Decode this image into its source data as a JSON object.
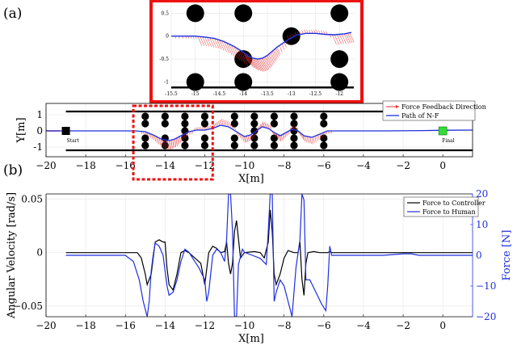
{
  "figure": {
    "panel_a_label": "(a)",
    "panel_b_label": "(b)"
  },
  "chart_data": [
    {
      "id": "inset",
      "type": "line",
      "title": "",
      "xlabel": "",
      "ylabel": "",
      "xlim": [
        -15.5,
        -11.7
      ],
      "ylim": [
        -1.15,
        0.7
      ],
      "x_ticks": [
        -15.5,
        -15,
        -14.5,
        -14,
        -13.5,
        -13,
        -12.5,
        -12
      ],
      "y_ticks": [
        0.5,
        0,
        -0.5,
        -1
      ],
      "grid": true,
      "frame_color": "#ee1111",
      "obstacles_x": [
        -15,
        -14,
        -13,
        -12
      ],
      "obstacles": [
        {
          "x": -15,
          "y": 0.5
        },
        {
          "x": -14,
          "y": 0.5
        },
        {
          "x": -12,
          "y": 0.5
        },
        {
          "x": -13,
          "y": 0
        },
        {
          "x": -14,
          "y": -0.5
        },
        {
          "x": -12,
          "y": -0.5
        },
        {
          "x": -15,
          "y": -1
        },
        {
          "x": -14,
          "y": -1
        },
        {
          "x": -12,
          "y": -1
        }
      ],
      "series": [
        {
          "color": "#1f2fe0",
          "x": [
            -15.5,
            -15.2,
            -15.0,
            -14.8,
            -14.6,
            -14.4,
            -14.2,
            -14.0,
            -13.9,
            -13.8,
            -13.7,
            -13.6,
            -13.5,
            -13.4,
            -13.3,
            -13.1,
            -12.9,
            -12.7,
            -12.5,
            -12.3,
            -12.1,
            -11.9,
            -11.75
          ],
          "y": [
            0.0,
            0.0,
            0.0,
            -0.02,
            -0.05,
            -0.12,
            -0.22,
            -0.35,
            -0.43,
            -0.48,
            -0.5,
            -0.48,
            -0.42,
            -0.33,
            -0.24,
            -0.1,
            0.02,
            0.06,
            0.06,
            0.04,
            0.03,
            0.05,
            0.08
          ]
        }
      ]
    },
    {
      "id": "top-path",
      "type": "line",
      "title": "",
      "xlabel": "X[m]",
      "ylabel": "Y[m]",
      "xlim": [
        -20,
        1.5
      ],
      "ylim": [
        -1.6,
        1.7
      ],
      "x_ticks": [
        -20,
        -18,
        -16,
        -14,
        -12,
        -10,
        -8,
        -6,
        -4,
        -2,
        0
      ],
      "y_ticks": [
        1,
        0,
        -1
      ],
      "grid": true,
      "legend": {
        "position": "top-right",
        "entries": [
          "Force Feedback Direction",
          "Path of N-F"
        ]
      },
      "start_label": "Start",
      "final_label": "Final",
      "start": {
        "x": -19,
        "y": 0
      },
      "final": {
        "x": 0,
        "y": 0
      },
      "start_color": "#000000",
      "final_color": "#33dd33",
      "walls_y": [
        1.2,
        -1.2
      ],
      "obstacle_columns": [
        {
          "x": -15,
          "y": [
            0.9,
            0.45,
            -0.45,
            -0.9
          ]
        },
        {
          "x": -14,
          "y": [
            0.9,
            0.45,
            -0.45,
            -0.9
          ]
        },
        {
          "x": -13,
          "y": [
            0.9,
            0.45,
            0,
            -0.45,
            -0.9
          ]
        },
        {
          "x": -12,
          "y": [
            0.9,
            0.45,
            -0.45,
            -0.9
          ]
        },
        {
          "x": -10.5,
          "y": [
            0.9,
            0.45,
            -0.45,
            -0.9
          ]
        },
        {
          "x": -9.5,
          "y": [
            0.9,
            0.45,
            0,
            -0.45,
            -0.9
          ]
        },
        {
          "x": -8.5,
          "y": [
            0.9,
            0.45,
            -0.45,
            -0.9
          ]
        },
        {
          "x": -7.5,
          "y": [
            0.9,
            0.45,
            0,
            -0.45,
            -0.9
          ]
        },
        {
          "x": -6,
          "y": [
            0.9,
            0.45,
            -0.45,
            -0.9
          ]
        }
      ],
      "zoom_box": {
        "x": [
          -15.6,
          -11.6
        ],
        "y": [
          -1.6,
          1.6
        ],
        "color": "#ee1111"
      },
      "series": [
        {
          "name": "Path of N-F",
          "color": "#1f2fe0",
          "x": [
            -20,
            -19,
            -17,
            -16,
            -15.5,
            -15,
            -14.6,
            -14.2,
            -13.8,
            -13.5,
            -13.2,
            -12.8,
            -12.4,
            -12,
            -11.6,
            -11.2,
            -10.8,
            -10.4,
            -10,
            -9.7,
            -9.4,
            -9.1,
            -8.8,
            -8.5,
            -8.2,
            -7.9,
            -7.6,
            -7.3,
            -7,
            -6.6,
            -6.2,
            -5.8,
            -5.4,
            -5,
            -3,
            -1,
            0,
            1.5
          ],
          "y": [
            0,
            0,
            0,
            0,
            0,
            -0.05,
            -0.25,
            -0.5,
            -0.6,
            -0.5,
            -0.3,
            -0.05,
            0.05,
            0.05,
            0.15,
            0.35,
            0.25,
            -0.05,
            -0.35,
            -0.25,
            0.0,
            0.25,
            0.15,
            -0.1,
            -0.3,
            -0.1,
            0.1,
            0.0,
            -0.3,
            -0.4,
            -0.2,
            0.0,
            0.0,
            0,
            0,
            0.02,
            0.04,
            0.05
          ]
        }
      ]
    },
    {
      "id": "bottom-velocity",
      "type": "line",
      "title": "",
      "xlabel": "X[m]",
      "ylabel": "Angular Velocity [rad/s]",
      "y2label": "Force [N]",
      "xlim": [
        -20,
        1.5
      ],
      "ylim": [
        -0.06,
        0.055
      ],
      "y2lim": [
        -20,
        20
      ],
      "x_ticks": [
        -20,
        -18,
        -16,
        -14,
        -12,
        -10,
        -8,
        -6,
        -4,
        -2,
        0
      ],
      "y_ticks": [
        0.05,
        0,
        -0.05
      ],
      "y2_ticks": [
        20,
        10,
        0,
        -10,
        -20
      ],
      "grid": true,
      "legend": {
        "position": "top-right",
        "entries": [
          "Force to Controller",
          "Force to Human"
        ]
      },
      "series": [
        {
          "name": "Force to Controller",
          "axis": "left",
          "color": "#000000",
          "x": [
            -19,
            -16,
            -15.4,
            -15.2,
            -15.0,
            -14.9,
            -14.7,
            -14.5,
            -14.3,
            -14.1,
            -14.0,
            -13.9,
            -13.8,
            -13.6,
            -13.4,
            -13.2,
            -13.0,
            -12.8,
            -12.5,
            -12.2,
            -12.0,
            -11.8,
            -11.6,
            -11.4,
            -11.2,
            -11.0,
            -10.9,
            -10.8,
            -10.7,
            -10.6,
            -10.5,
            -10.4,
            -10.2,
            -10.0,
            -9.5,
            -9.2,
            -9.0,
            -8.8,
            -8.7,
            -8.6,
            -8.5,
            -8.4,
            -8.2,
            -8.0,
            -7.8,
            -7.5,
            -7.3,
            -7.2,
            -7.1,
            -7.0,
            -6.9,
            -6.8,
            -6.5,
            -6.2,
            -6.0,
            -5.8,
            -5.7,
            -5.6,
            -5.5,
            -5.3,
            -5.0,
            -3,
            -1,
            1.5
          ],
          "y": [
            0,
            0,
            0,
            -0.005,
            -0.02,
            -0.03,
            -0.02,
            0.01,
            0.012,
            0.01,
            0.01,
            -0.015,
            -0.03,
            -0.035,
            -0.02,
            0.0,
            0.002,
            0.0,
            -0.005,
            -0.01,
            -0.03,
            0.0,
            0.006,
            0.004,
            0.0,
            0.001,
            0.01,
            -0.01,
            -0.02,
            -0.01,
            0.02,
            0.03,
            -0.005,
            0.0,
            0.001,
            0.0,
            -0.005,
            0.01,
            0.04,
            0.02,
            -0.02,
            -0.03,
            -0.02,
            -0.005,
            0.002,
            0.0,
            0.0,
            0.01,
            -0.025,
            -0.04,
            -0.01,
            0.0,
            0.001,
            0.0,
            0.0,
            0.0,
            0.001,
            0.0,
            0.0,
            0.0,
            0,
            0,
            0,
            0
          ]
        },
        {
          "name": "Force to Human",
          "axis": "right",
          "color": "#1f2fe0",
          "x": [
            -19,
            -17,
            -16,
            -15.6,
            -15.3,
            -15.1,
            -14.9,
            -14.8,
            -14.7,
            -14.6,
            -14.5,
            -14.3,
            -14.1,
            -14.0,
            -13.9,
            -13.8,
            -13.6,
            -13.4,
            -13.2,
            -13.0,
            -12.8,
            -12.6,
            -12.3,
            -12.0,
            -11.9,
            -11.8,
            -11.6,
            -11.4,
            -11.2,
            -11.0,
            -10.9,
            -10.8,
            -10.7,
            -10.6,
            -10.5,
            -10.4,
            -10.3,
            -10.1,
            -10.0,
            -9.6,
            -9.2,
            -8.9,
            -8.8,
            -8.7,
            -8.6,
            -8.5,
            -8.4,
            -8.2,
            -8.0,
            -7.8,
            -7.6,
            -7.4,
            -7.2,
            -7.1,
            -7.0,
            -6.9,
            -6.7,
            -6.4,
            -6.1,
            -5.9,
            -5.8,
            -5.7,
            -5.6,
            -5.4,
            -5.0,
            -3,
            -2,
            -1.6,
            -1.2,
            -0.5,
            1.5
          ],
          "y": [
            0,
            0,
            0,
            -2,
            -8,
            -15,
            -20,
            -15,
            -5,
            0,
            4,
            3,
            0,
            -5,
            -10,
            -13,
            -12,
            -8,
            -2,
            2,
            1,
            -1,
            -4,
            -8,
            -15,
            -12,
            0,
            2,
            1,
            -2,
            5,
            20,
            20,
            8,
            -20,
            -20,
            -3,
            2,
            1,
            0,
            -1,
            -3,
            8,
            20,
            20,
            -15,
            -12,
            -8,
            -10,
            -15,
            -20,
            -4,
            5,
            20,
            18,
            -8,
            -8,
            -12,
            -16,
            -18,
            -10,
            3,
            0,
            0,
            0,
            0,
            0.5,
            0.5,
            0,
            0,
            0
          ]
        }
      ]
    }
  ]
}
